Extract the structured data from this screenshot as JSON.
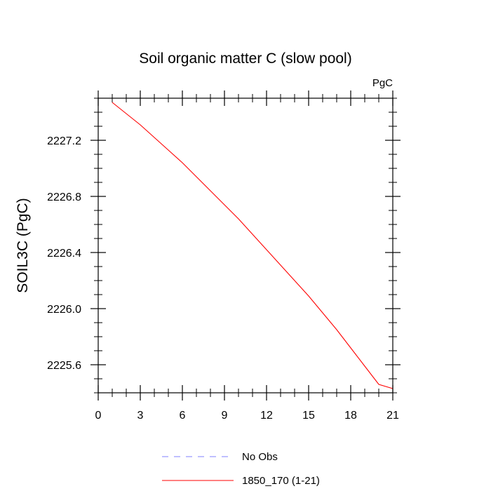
{
  "chart_data": {
    "type": "line",
    "title": "Soil organic matter C (slow pool)",
    "units_label": "PgC",
    "ylabel": "SOIL3C  (PgC)",
    "xlabel": "",
    "xlim": [
      0,
      21
    ],
    "ylim": [
      2225.4,
      2227.5
    ],
    "x_ticks": [
      0,
      3,
      6,
      9,
      12,
      15,
      18,
      21
    ],
    "x_tick_labels": [
      "0",
      "3",
      "6",
      "9",
      "12",
      "15",
      "18",
      "21"
    ],
    "x_minor_step": 1,
    "y_ticks": [
      2225.6,
      2226.0,
      2226.4,
      2226.8,
      2227.2
    ],
    "y_tick_labels": [
      "2225.6",
      "2226.0",
      "2226.4",
      "2226.8",
      "2227.2"
    ],
    "y_minor_step": 0.1,
    "grid": false,
    "legend_placement": "bottom",
    "series": [
      {
        "name": "1850_170 (1-21)",
        "color": "#ff0000",
        "style": "solid",
        "x": [
          1,
          2,
          3,
          4,
          5,
          6,
          7,
          8,
          9,
          10,
          11,
          12,
          13,
          14,
          15,
          16,
          17,
          18,
          19,
          20,
          21
        ],
        "y": [
          2227.47,
          2227.39,
          2227.31,
          2227.22,
          2227.13,
          2227.04,
          2226.94,
          2226.84,
          2226.74,
          2226.64,
          2226.53,
          2226.42,
          2226.31,
          2226.2,
          2226.09,
          2225.97,
          2225.85,
          2225.72,
          2225.59,
          2225.46,
          2225.43
        ]
      }
    ],
    "legend": [
      {
        "label": "No Obs",
        "color": "#8080ff",
        "style": "dashed"
      },
      {
        "label": "1850_170 (1-21)",
        "color": "#ff0000",
        "style": "solid"
      }
    ]
  }
}
